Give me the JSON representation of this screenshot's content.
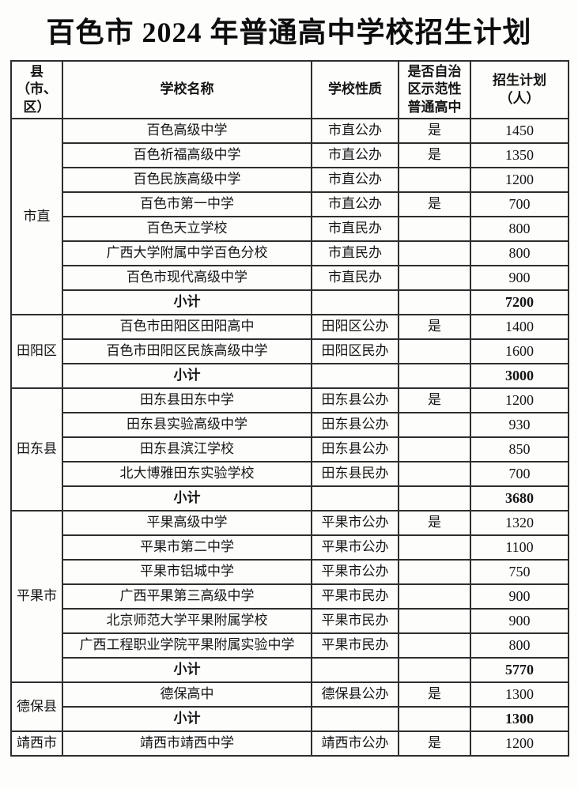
{
  "title": "百色市 2024 年普通高中学校招生计划",
  "table": {
    "headers": {
      "county": "县（市、\n区）",
      "school": "学校名称",
      "nature": "学校性质",
      "demonstration": "是否自治\n区示范性\n普通高中",
      "plan": "招生计划\n（人）"
    },
    "groups": [
      {
        "county": "市直",
        "rows": [
          {
            "school": "百色高级中学",
            "nature": "市直公办",
            "demo": "是",
            "plan": "1450"
          },
          {
            "school": "百色祈福高级中学",
            "nature": "市直公办",
            "demo": "是",
            "plan": "1350"
          },
          {
            "school": "百色民族高级中学",
            "nature": "市直公办",
            "demo": "",
            "plan": "1200"
          },
          {
            "school": "百色市第一中学",
            "nature": "市直公办",
            "demo": "是",
            "plan": "700"
          },
          {
            "school": "百色天立学校",
            "nature": "市直民办",
            "demo": "",
            "plan": "800"
          },
          {
            "school": "广西大学附属中学百色分校",
            "nature": "市直民办",
            "demo": "",
            "plan": "800"
          },
          {
            "school": "百色市现代高级中学",
            "nature": "市直民办",
            "demo": "",
            "plan": "900"
          }
        ],
        "subtotal": {
          "label": "小计",
          "plan": "7200"
        }
      },
      {
        "county": "田阳区",
        "rows": [
          {
            "school": "百色市田阳区田阳高中",
            "nature": "田阳区公办",
            "demo": "是",
            "plan": "1400"
          },
          {
            "school": "百色市田阳区民族高级中学",
            "nature": "田阳区民办",
            "demo": "",
            "plan": "1600"
          }
        ],
        "subtotal": {
          "label": "小计",
          "plan": "3000"
        }
      },
      {
        "county": "田东县",
        "rows": [
          {
            "school": "田东县田东中学",
            "nature": "田东县公办",
            "demo": "是",
            "plan": "1200"
          },
          {
            "school": "田东县实验高级中学",
            "nature": "田东县公办",
            "demo": "",
            "plan": "930"
          },
          {
            "school": "田东县滨江学校",
            "nature": "田东县公办",
            "demo": "",
            "plan": "850"
          },
          {
            "school": "北大博雅田东实验学校",
            "nature": "田东县民办",
            "demo": "",
            "plan": "700"
          }
        ],
        "subtotal": {
          "label": "小计",
          "plan": "3680"
        }
      },
      {
        "county": "平果市",
        "rows": [
          {
            "school": "平果高级中学",
            "nature": "平果市公办",
            "demo": "是",
            "plan": "1320"
          },
          {
            "school": "平果市第二中学",
            "nature": "平果市公办",
            "demo": "",
            "plan": "1100"
          },
          {
            "school": "平果市铝城中学",
            "nature": "平果市公办",
            "demo": "",
            "plan": "750"
          },
          {
            "school": "广西平果第三高级中学",
            "nature": "平果市民办",
            "demo": "",
            "plan": "900"
          },
          {
            "school": "北京师范大学平果附属学校",
            "nature": "平果市民办",
            "demo": "",
            "plan": "900"
          },
          {
            "school": "广西工程职业学院平果附属实验中学",
            "nature": "平果市民办",
            "demo": "",
            "plan": "800"
          }
        ],
        "subtotal": {
          "label": "小计",
          "plan": "5770"
        }
      },
      {
        "county": "德保县",
        "rows": [
          {
            "school": "德保高中",
            "nature": "德保县公办",
            "demo": "是",
            "plan": "1300"
          }
        ],
        "subtotal": {
          "label": "小计",
          "plan": "1300"
        }
      },
      {
        "county": "靖西市",
        "rows": [
          {
            "school": "靖西市靖西中学",
            "nature": "靖西市公办",
            "demo": "是",
            "plan": "1200"
          }
        ],
        "subtotal": null
      }
    ]
  }
}
